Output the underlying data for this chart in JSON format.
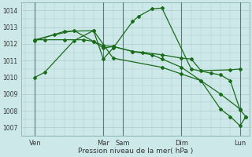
{
  "xlabel": "Pression niveau de la mer( hPa )",
  "ylim": [
    1006.5,
    1014.5
  ],
  "yticks": [
    1007,
    1008,
    1009,
    1010,
    1011,
    1012,
    1013,
    1014
  ],
  "xlim": [
    -0.2,
    11.5
  ],
  "background_color": "#cce8e8",
  "grid_color": "#b0c8c8",
  "dark_vline_color": "#5a7a7a",
  "line_color": "#1a6b1a",
  "day_labels": [
    "Ven",
    "Mar",
    "Sam",
    "Dim",
    "Lun"
  ],
  "day_positions": [
    0.5,
    4.0,
    5.0,
    8.0,
    11.0
  ],
  "vline_positions": [
    0.5,
    4.0,
    5.0,
    8.0,
    11.0
  ],
  "lines": [
    {
      "x": [
        0.5,
        1.0,
        2.5,
        3.5,
        4.0,
        4.5,
        5.5,
        5.8,
        6.5,
        7.0,
        8.5,
        9.5,
        10.0,
        10.5,
        11.0,
        11.3
      ],
      "y": [
        1010.0,
        1010.3,
        1012.2,
        1012.8,
        1011.1,
        1011.75,
        1013.35,
        1013.65,
        1014.1,
        1014.15,
        1010.5,
        1010.25,
        1010.15,
        1009.8,
        1008.05,
        1007.65
      ]
    },
    {
      "x": [
        0.5,
        1.5,
        2.5,
        3.5,
        4.0,
        4.5,
        5.5,
        6.0,
        7.0,
        8.0,
        8.5,
        9.0,
        10.5,
        11.0
      ],
      "y": [
        1012.25,
        1012.55,
        1012.8,
        1012.15,
        1011.75,
        1011.85,
        1011.55,
        1011.5,
        1011.35,
        1011.15,
        1011.1,
        1010.4,
        1010.45,
        1010.5
      ]
    },
    {
      "x": [
        0.5,
        1.0,
        2.0,
        3.0,
        3.5,
        4.0,
        4.5,
        5.5,
        6.5,
        7.0,
        8.0,
        9.0,
        10.0,
        11.0
      ],
      "y": [
        1012.25,
        1012.25,
        1012.25,
        1012.25,
        1012.15,
        1011.9,
        1011.85,
        1011.55,
        1011.35,
        1011.1,
        1010.6,
        1009.8,
        1009.0,
        1008.1
      ]
    },
    {
      "x": [
        0.5,
        2.0,
        3.5,
        4.5,
        7.0,
        8.0,
        9.0,
        10.0,
        10.5,
        11.0,
        11.3
      ],
      "y": [
        1012.2,
        1012.75,
        1012.8,
        1011.15,
        1010.6,
        1010.2,
        1009.8,
        1008.1,
        1007.65,
        1007.1,
        1007.65
      ]
    }
  ]
}
